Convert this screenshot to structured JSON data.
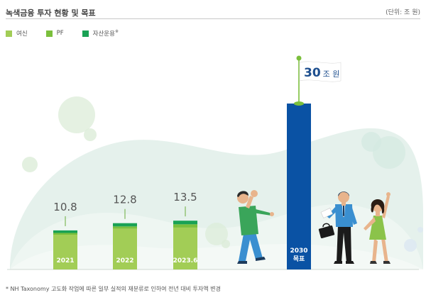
{
  "header": {
    "title": "녹색금융 투자 현황 및 목표",
    "unit": "(단위: 조 원)"
  },
  "legend": [
    {
      "label": "여신",
      "color": "#a2cd56"
    },
    {
      "label": "PF",
      "color": "#7bbf3c"
    },
    {
      "label": "자산운용",
      "mark": "※",
      "color": "#1aa255"
    }
  ],
  "chart_data": {
    "type": "bar",
    "categories": [
      "2021",
      "2022",
      "2023.6",
      "2030\n목표"
    ],
    "totals": [
      10.8,
      12.8,
      13.5,
      30
    ],
    "total_labels": [
      "10.8",
      "12.8",
      "13.5",
      "30"
    ],
    "target_unit": "조 원",
    "series": [
      {
        "name": "여신",
        "values": [
          9.6,
          11.3,
          11.6,
          null
        ],
        "color": "#a2cd56"
      },
      {
        "name": "PF",
        "values": [
          0.5,
          0.6,
          0.9,
          null
        ],
        "color": "#7bbf3c"
      },
      {
        "name": "자산운용",
        "values": [
          0.7,
          0.9,
          1.0,
          null
        ],
        "color": "#1aa255"
      }
    ],
    "target_color": "#0a52a4",
    "xlabel": "",
    "ylabel": "",
    "ylim": [
      0,
      30
    ]
  },
  "footnote": "* NH Taxonomy 고도화 작업에 따른 일부 실적의 재분류로 인하여 전년 대비 투자액 변경"
}
